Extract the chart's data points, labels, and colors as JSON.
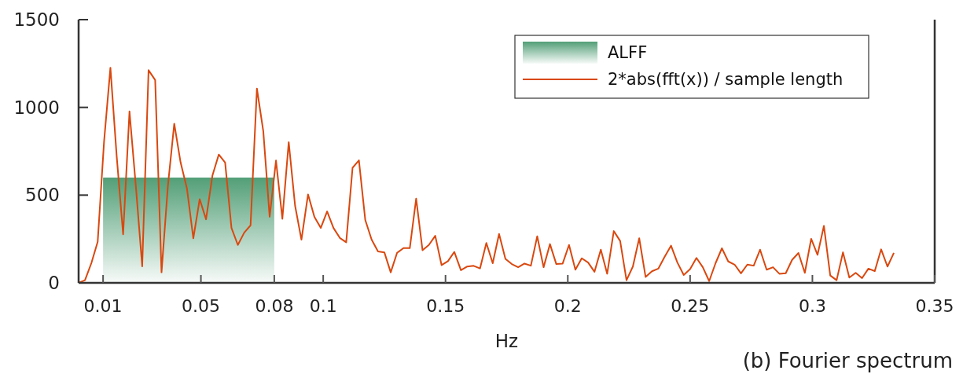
{
  "chart_data": {
    "type": "line",
    "xlabel": "Hz",
    "annotations": [
      "(b) Fourier spectrum"
    ],
    "xlim": [
      0,
      0.35
    ],
    "xticks": [
      0.01,
      0.05,
      0.08,
      0.1,
      0.15,
      0.2,
      0.25,
      0.3,
      0.35
    ],
    "ylim": [
      0,
      1500
    ],
    "yticks": [
      0,
      500,
      1000,
      1500
    ],
    "grid": false,
    "legend": "top right",
    "line_style": "solid",
    "marker": "none",
    "series": [
      {
        "name": "ALFF",
        "type": "area",
        "color": "#3f9468",
        "x": [
          0.01,
          0.08
        ],
        "values": [
          600,
          600
        ]
      },
      {
        "name": "2*abs(fft(x)) / sample length",
        "color": "#d9480f",
        "x": [
          0,
          0.0026,
          0.0052,
          0.0078,
          0.0104,
          0.013,
          0.0156,
          0.0182,
          0.0208,
          0.0234,
          0.026,
          0.0286,
          0.0313,
          0.0339,
          0.0365,
          0.0391,
          0.0417,
          0.0443,
          0.0469,
          0.0495,
          0.0521,
          0.0547,
          0.0573,
          0.0599,
          0.0625,
          0.0651,
          0.0677,
          0.0703,
          0.0729,
          0.0755,
          0.0781,
          0.0807,
          0.0833,
          0.0859,
          0.0885,
          0.0911,
          0.0938,
          0.0964,
          0.099,
          0.1016,
          0.1042,
          0.1068,
          0.1094,
          0.112,
          0.1146,
          0.1172,
          0.1198,
          0.1224,
          0.125,
          0.1276,
          0.1302,
          0.1328,
          0.1354,
          0.138,
          0.1406,
          0.1432,
          0.1458,
          0.1484,
          0.151,
          0.1536,
          0.1563,
          0.1589,
          0.1615,
          0.1641,
          0.1667,
          0.1693,
          0.1719,
          0.1745,
          0.1771,
          0.1797,
          0.1823,
          0.1849,
          0.1875,
          0.1901,
          0.1927,
          0.1953,
          0.1979,
          0.2005,
          0.2031,
          0.2057,
          0.2083,
          0.2109,
          0.2135,
          0.2161,
          0.2188,
          0.2214,
          0.224,
          0.2266,
          0.2292,
          0.2318,
          0.2344,
          0.237,
          0.2396,
          0.2422,
          0.2448,
          0.2474,
          0.25,
          0.2526,
          0.2552,
          0.2578,
          0.2604,
          0.263,
          0.2656,
          0.2682,
          0.2708,
          0.2734,
          0.276,
          0.2786,
          0.2813,
          0.2839,
          0.2865,
          0.2891,
          0.2917,
          0.2943,
          0.2969,
          0.2995,
          0.3021,
          0.3047,
          0.3073,
          0.3099,
          0.3125,
          0.3151,
          0.3177,
          0.3203,
          0.3229,
          0.3255,
          0.3281,
          0.3307,
          0.3333
        ],
        "values": [
          0,
          15,
          112,
          234,
          805,
          1226,
          716,
          277,
          977,
          552,
          94,
          1212,
          1156,
          60,
          552,
          907,
          686,
          537,
          254,
          477,
          362,
          611,
          731,
          686,
          313,
          216,
          286,
          328,
          1107,
          865,
          377,
          697,
          365,
          802,
          440,
          246,
          504,
          376,
          313,
          407,
          313,
          256,
          231,
          656,
          698,
          358,
          246,
          179,
          174,
          60,
          171,
          198,
          198,
          480,
          186,
          216,
          268,
          101,
          124,
          176,
          72,
          93,
          97,
          82,
          227,
          112,
          279,
          137,
          107,
          89,
          110,
          98,
          265,
          89,
          221,
          107,
          110,
          216,
          75,
          140,
          116,
          63,
          189,
          52,
          295,
          239,
          15,
          93,
          254,
          34,
          66,
          81,
          149,
          212,
          116,
          45,
          78,
          142,
          89,
          10,
          112,
          197,
          122,
          104,
          54,
          104,
          98,
          189,
          75,
          89,
          52,
          55,
          131,
          170,
          57,
          251,
          160,
          325,
          42,
          15,
          174,
          30,
          57,
          27,
          81,
          67,
          191,
          93,
          171
        ]
      }
    ]
  }
}
